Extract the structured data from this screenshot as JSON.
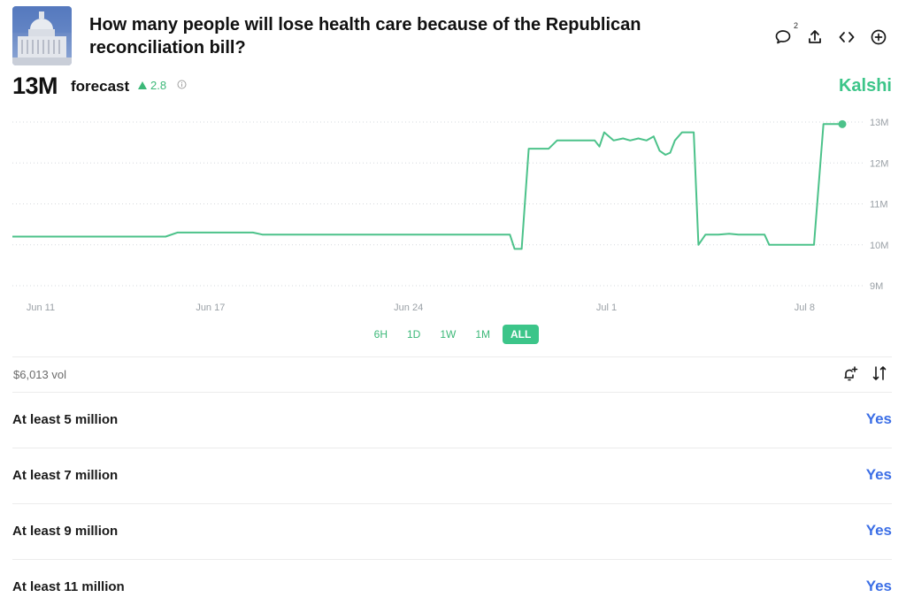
{
  "market": {
    "title": "How many people will lose health care because of the Republican reconciliation bill?",
    "comment_count": "2"
  },
  "forecast": {
    "value": "13M",
    "label": "forecast",
    "delta": "2.8",
    "delta_direction": "up",
    "brand": "Kalshi"
  },
  "colors": {
    "accent": "#3cc589",
    "line": "#4cc28a",
    "yes": "#3b6ee6"
  },
  "chart_data": {
    "type": "line",
    "title": "",
    "xlabel": "",
    "ylabel": "",
    "ylim": [
      9,
      13.3
    ],
    "y_ticks": [
      "13M",
      "12M",
      "11M",
      "10M",
      "9M"
    ],
    "x_ticks": [
      "Jun 11",
      "Jun 17",
      "Jun 24",
      "Jul 1",
      "Jul 8"
    ],
    "series": [
      {
        "values_unit": "millions",
        "points": [
          [
            "Jun 10 00:00",
            10.2
          ],
          [
            "Jun 15 10:00",
            10.2
          ],
          [
            "Jun 15 20:00",
            10.3
          ],
          [
            "Jun 18 12:00",
            10.3
          ],
          [
            "Jun 18 20:00",
            10.25
          ],
          [
            "Jun 27 14:00",
            10.25
          ],
          [
            "Jun 27 18:00",
            9.9
          ],
          [
            "Jun 28 00:00",
            9.9
          ],
          [
            "Jun 28 06:00",
            12.35
          ],
          [
            "Jun 28 23:00",
            12.35
          ],
          [
            "Jun 29 06:00",
            12.55
          ],
          [
            "Jun 30 14:00",
            12.55
          ],
          [
            "Jun 30 18:00",
            12.4
          ],
          [
            "Jun 30 22:00",
            12.75
          ],
          [
            "Jul 1 06:00",
            12.55
          ],
          [
            "Jul 1 14:00",
            12.6
          ],
          [
            "Jul 1 20:00",
            12.55
          ],
          [
            "Jul 2 03:00",
            12.6
          ],
          [
            "Jul 2 10:00",
            12.55
          ],
          [
            "Jul 2 16:00",
            12.65
          ],
          [
            "Jul 2 21:00",
            12.3
          ],
          [
            "Jul 3 02:00",
            12.2
          ],
          [
            "Jul 3 06:00",
            12.25
          ],
          [
            "Jul 3 10:00",
            12.55
          ],
          [
            "Jul 3 16:00",
            12.75
          ],
          [
            "Jul 4 02:00",
            12.75
          ],
          [
            "Jul 4 06:00",
            10.0
          ],
          [
            "Jul 4 12:00",
            10.25
          ],
          [
            "Jul 4 23:00",
            10.25
          ],
          [
            "Jul 5 08:00",
            10.27
          ],
          [
            "Jul 5 16:00",
            10.25
          ],
          [
            "Jul 6 14:00",
            10.25
          ],
          [
            "Jul 6 18:00",
            10.0
          ],
          [
            "Jul 8 08:00",
            10.0
          ],
          [
            "Jul 8 16:00",
            12.95
          ],
          [
            "Jul 9 08:00",
            12.95
          ]
        ]
      }
    ],
    "grid": "dotted horizontal",
    "legend": "none"
  },
  "time_ranges": [
    "6H",
    "1D",
    "1W",
    "1M",
    "ALL"
  ],
  "selected_range": "ALL",
  "volume": "$6,013 vol",
  "outcomes": [
    {
      "label": "At least 5 million",
      "action": "Yes"
    },
    {
      "label": "At least 7 million",
      "action": "Yes"
    },
    {
      "label": "At least 9 million",
      "action": "Yes"
    },
    {
      "label": "At least 11 million",
      "action": "Yes"
    }
  ],
  "icons": {
    "header": [
      "comment-icon",
      "share-icon",
      "embed-icon",
      "add-icon"
    ],
    "tools": [
      "add-alert-icon",
      "sort-icon"
    ],
    "delta": "triangle-up-icon",
    "info": "info-icon"
  }
}
